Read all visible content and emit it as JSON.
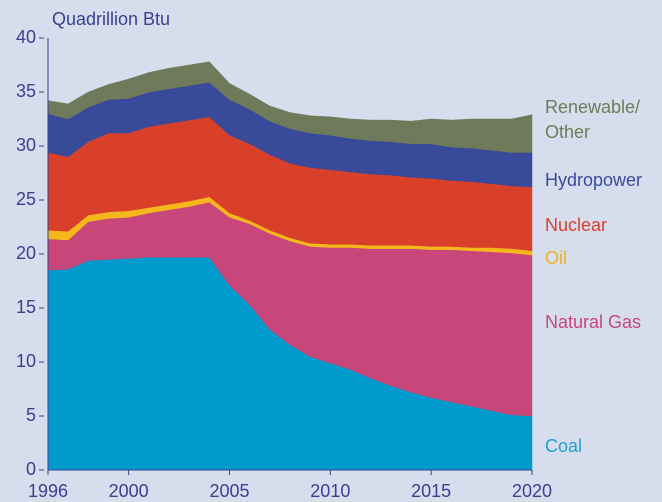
{
  "chart_data": {
    "type": "stacked_area",
    "y_axis_label": "Quadrillion Btu",
    "x": [
      1996,
      1997,
      1998,
      1999,
      2000,
      2001,
      2002,
      2003,
      2004,
      2005,
      2006,
      2007,
      2008,
      2009,
      2010,
      2011,
      2012,
      2013,
      2014,
      2015,
      2016,
      2017,
      2018,
      2019,
      2020
    ],
    "series": [
      {
        "name": "Coal",
        "color": "#0099cc",
        "label_color": "#1fa0d2",
        "values": [
          18.5,
          18.6,
          19.4,
          19.5,
          19.6,
          19.7,
          19.7,
          19.7,
          19.7,
          17.1,
          15.3,
          13.0,
          11.6,
          10.5,
          9.9,
          9.3,
          8.5,
          7.8,
          7.2,
          6.7,
          6.3,
          5.9,
          5.5,
          5.1,
          5.0
        ]
      },
      {
        "name": "Natural Gas",
        "color": "#c8467a",
        "label_color": "#c8467a",
        "values": [
          2.9,
          2.7,
          3.6,
          3.8,
          3.8,
          4.1,
          4.4,
          4.7,
          5.1,
          6.3,
          7.5,
          8.9,
          9.6,
          10.2,
          10.7,
          11.3,
          12.0,
          12.7,
          13.3,
          13.7,
          14.1,
          14.4,
          14.7,
          15.0,
          14.9
        ]
      },
      {
        "name": "Oil",
        "color": "#f5b81c",
        "label_color": "#f0b020",
        "values": [
          0.8,
          0.8,
          0.6,
          0.6,
          0.6,
          0.5,
          0.5,
          0.5,
          0.5,
          0.4,
          0.3,
          0.3,
          0.3,
          0.3,
          0.3,
          0.3,
          0.3,
          0.3,
          0.3,
          0.3,
          0.3,
          0.3,
          0.4,
          0.4,
          0.4
        ]
      },
      {
        "name": "Nuclear",
        "color": "#d9402a",
        "label_color": "#d9402a",
        "values": [
          7.2,
          6.9,
          6.8,
          7.3,
          7.2,
          7.5,
          7.5,
          7.5,
          7.4,
          7.2,
          7.1,
          7.0,
          6.9,
          7.0,
          6.9,
          6.7,
          6.6,
          6.5,
          6.3,
          6.3,
          6.1,
          6.1,
          5.9,
          5.8,
          5.9
        ]
      },
      {
        "name": "Hydropower",
        "color": "#3a4a9a",
        "label_color": "#3a4a9a",
        "values": [
          3.6,
          3.5,
          3.2,
          3.1,
          3.2,
          3.2,
          3.2,
          3.2,
          3.2,
          3.3,
          3.2,
          3.1,
          3.2,
          3.2,
          3.2,
          3.1,
          3.1,
          3.1,
          3.1,
          3.2,
          3.1,
          3.1,
          3.1,
          3.1,
          3.2
        ]
      },
      {
        "name": "Renewable/ Other",
        "color": "#6f7a5a",
        "label_color": "#6f7a5a",
        "values": [
          1.2,
          1.4,
          1.4,
          1.4,
          1.8,
          1.8,
          1.9,
          1.9,
          1.9,
          1.5,
          1.4,
          1.4,
          1.5,
          1.6,
          1.7,
          1.8,
          1.9,
          2.0,
          2.1,
          2.3,
          2.5,
          2.7,
          2.9,
          3.1,
          3.5
        ]
      }
    ],
    "xlim": [
      1996,
      2020
    ],
    "xticks": [
      1996,
      2000,
      2005,
      2010,
      2015,
      2020
    ],
    "ylim": [
      0,
      40
    ],
    "yticks": [
      0,
      5,
      10,
      15,
      20,
      25,
      30,
      35,
      40
    ]
  }
}
